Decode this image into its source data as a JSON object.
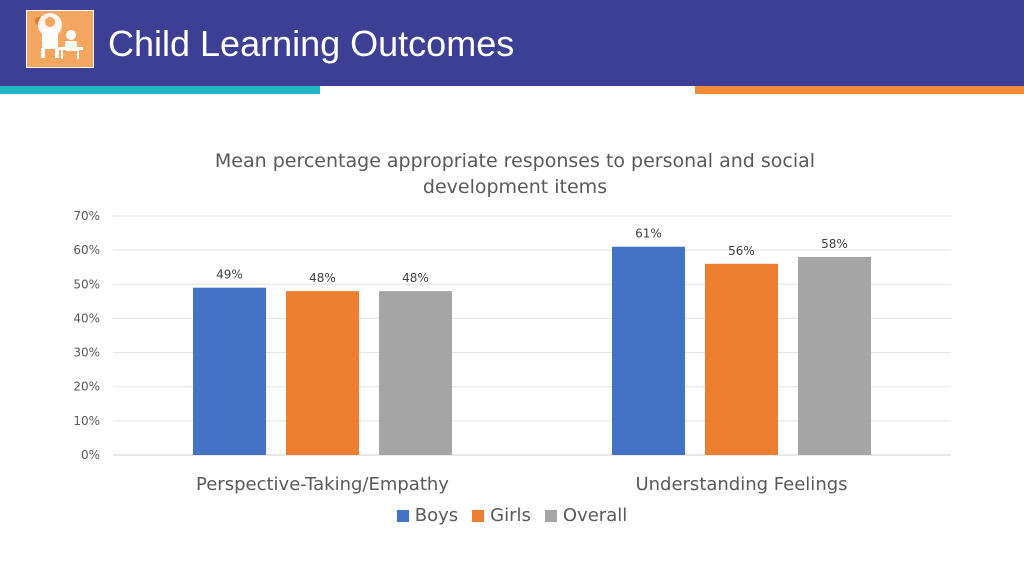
{
  "header": {
    "title": "Child Learning Outcomes",
    "logo_icon": "teacher-child-icon",
    "colors": {
      "band": "#3c3f94",
      "accent_teal": "#26b7c6",
      "accent_orange": "#ee8a3a"
    }
  },
  "chart_data": {
    "type": "bar",
    "title": "Mean percentage appropriate responses to personal and social development items",
    "categories": [
      "Perspective-Taking/Empathy",
      "Understanding Feelings"
    ],
    "series": [
      {
        "name": "Boys",
        "values": [
          49,
          61
        ],
        "labels": [
          "49%",
          "61%"
        ],
        "color": "#4472c4"
      },
      {
        "name": "Girls",
        "values": [
          48,
          56
        ],
        "labels": [
          "48%",
          "56%"
        ],
        "color": "#ed7d31"
      },
      {
        "name": "Overall",
        "values": [
          48,
          58
        ],
        "labels": [
          "48%",
          "58%"
        ],
        "color": "#a5a5a5"
      }
    ],
    "yticks": [
      "0%",
      "10%",
      "20%",
      "30%",
      "40%",
      "50%",
      "60%",
      "70%"
    ],
    "ylim": [
      0,
      70
    ],
    "grid": true,
    "legend_position": "bottom"
  }
}
